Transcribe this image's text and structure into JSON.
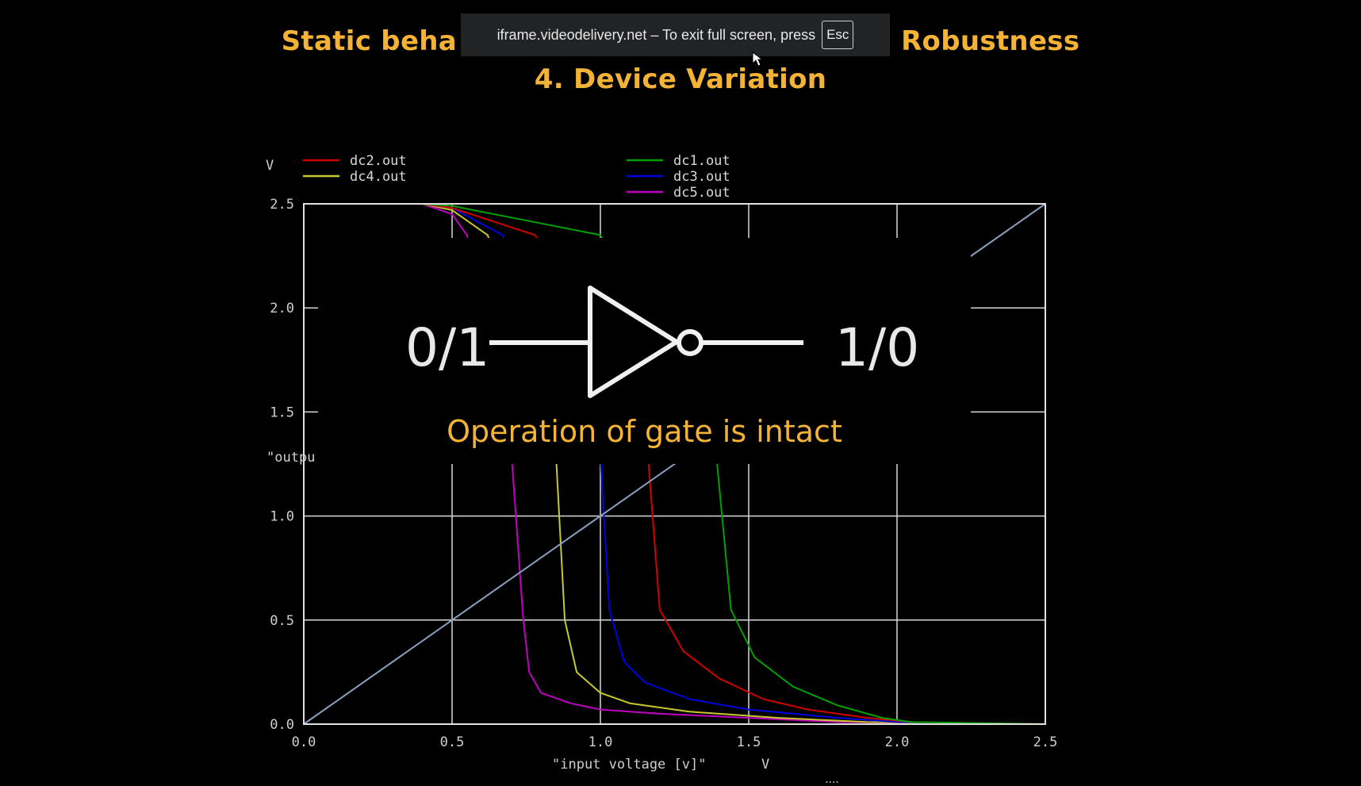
{
  "slide": {
    "title_left": "Static beha",
    "title_right": "Robustness",
    "subtitle": "4. Device Variation",
    "bottom_clip": "...."
  },
  "fullscreen_banner": {
    "text": "iframe.videodelivery.net – To exit full screen, press",
    "key": "Esc"
  },
  "overlay": {
    "input_label": "0/1",
    "output_label": "1/0",
    "caption": "Operation of gate is intact"
  },
  "chart_data": {
    "type": "line",
    "ylabel_unit": "V",
    "ylabel": "\"outpu",
    "xlabel": "\"input voltage [v]\"",
    "xlabel_unit": "V",
    "xlim": [
      0,
      2.5
    ],
    "ylim": [
      0,
      2.5
    ],
    "xticks": [
      "0.0",
      "0.5",
      "1.0",
      "1.5",
      "2.0",
      "2.5"
    ],
    "yticks": [
      "0.0",
      "0.5",
      "1.0",
      "1.5",
      "2.0",
      "2.5"
    ],
    "grid": true,
    "legend": [
      {
        "name": "dc2.out",
        "color": "#d00000"
      },
      {
        "name": "dc4.out",
        "color": "#c8c830"
      },
      {
        "name": "dc1.out",
        "color": "#00a000"
      },
      {
        "name": "dc3.out",
        "color": "#0000e0"
      },
      {
        "name": "dc5.out",
        "color": "#c000c0"
      }
    ],
    "series": [
      {
        "name": "dc5.out",
        "color": "#c000c0",
        "x": [
          0,
          0.4,
          0.5,
          0.55,
          0.7,
          0.74,
          0.76,
          0.8,
          0.9,
          1.0,
          1.2,
          1.5,
          1.8,
          2.5
        ],
        "y": [
          2.5,
          2.5,
          2.45,
          2.35,
          1.3,
          0.5,
          0.25,
          0.15,
          0.1,
          0.07,
          0.05,
          0.03,
          0.01,
          0
        ]
      },
      {
        "name": "dc4.out",
        "color": "#c8c830",
        "x": [
          0,
          0.4,
          0.5,
          0.62,
          0.85,
          0.88,
          0.92,
          1.0,
          1.1,
          1.3,
          1.6,
          1.9,
          2.5
        ],
        "y": [
          2.5,
          2.5,
          2.47,
          2.35,
          1.3,
          0.5,
          0.25,
          0.15,
          0.1,
          0.06,
          0.03,
          0.01,
          0
        ]
      },
      {
        "name": "dc3.out",
        "color": "#0000e0",
        "x": [
          0,
          0.4,
          0.5,
          0.67,
          1.0,
          1.03,
          1.08,
          1.15,
          1.3,
          1.5,
          1.8,
          2.0,
          2.5
        ],
        "y": [
          2.5,
          2.5,
          2.48,
          2.35,
          1.3,
          0.55,
          0.3,
          0.2,
          0.12,
          0.07,
          0.03,
          0.01,
          0
        ]
      },
      {
        "name": "dc2.out",
        "color": "#d00000",
        "x": [
          0,
          0.4,
          0.5,
          0.78,
          1.16,
          1.2,
          1.28,
          1.4,
          1.55,
          1.7,
          1.9,
          2.05,
          2.5
        ],
        "y": [
          2.5,
          2.5,
          2.48,
          2.35,
          1.3,
          0.55,
          0.35,
          0.22,
          0.12,
          0.07,
          0.03,
          0.01,
          0
        ]
      },
      {
        "name": "dc1.out",
        "color": "#00a000",
        "x": [
          0,
          0.4,
          0.5,
          1.0,
          1.39,
          1.44,
          1.52,
          1.65,
          1.8,
          1.95,
          2.05,
          2.5
        ],
        "y": [
          2.5,
          2.5,
          2.49,
          2.35,
          1.3,
          0.55,
          0.32,
          0.18,
          0.09,
          0.03,
          0.01,
          0
        ]
      },
      {
        "name": "",
        "color": "#8aa0c0",
        "x": [
          0,
          2.5
        ],
        "y": [
          0,
          2.5
        ]
      }
    ]
  }
}
